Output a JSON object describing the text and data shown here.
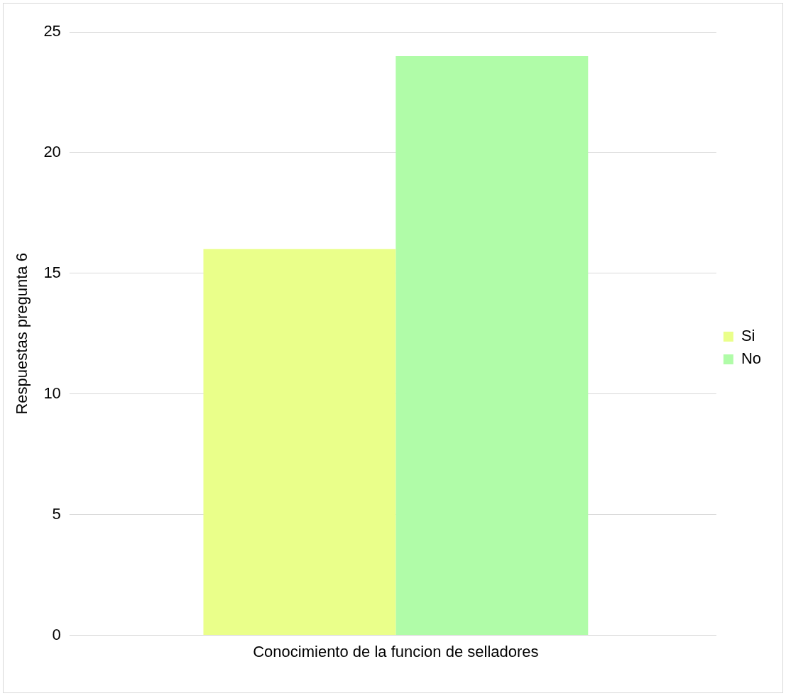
{
  "chart_data": {
    "type": "bar",
    "ylabel": "Respuestas pregunta 6",
    "categories": [
      "Conocimiento de la funcion de selladores"
    ],
    "series": [
      {
        "name": "Si",
        "color": "#eaff8a",
        "values": [
          16
        ]
      },
      {
        "name": "No",
        "color": "#b0fca8",
        "values": [
          24
        ]
      }
    ],
    "ylim": [
      0,
      25
    ],
    "yticks": [
      0,
      5,
      10,
      15,
      20,
      25
    ],
    "grid": "y",
    "legend": "right"
  }
}
